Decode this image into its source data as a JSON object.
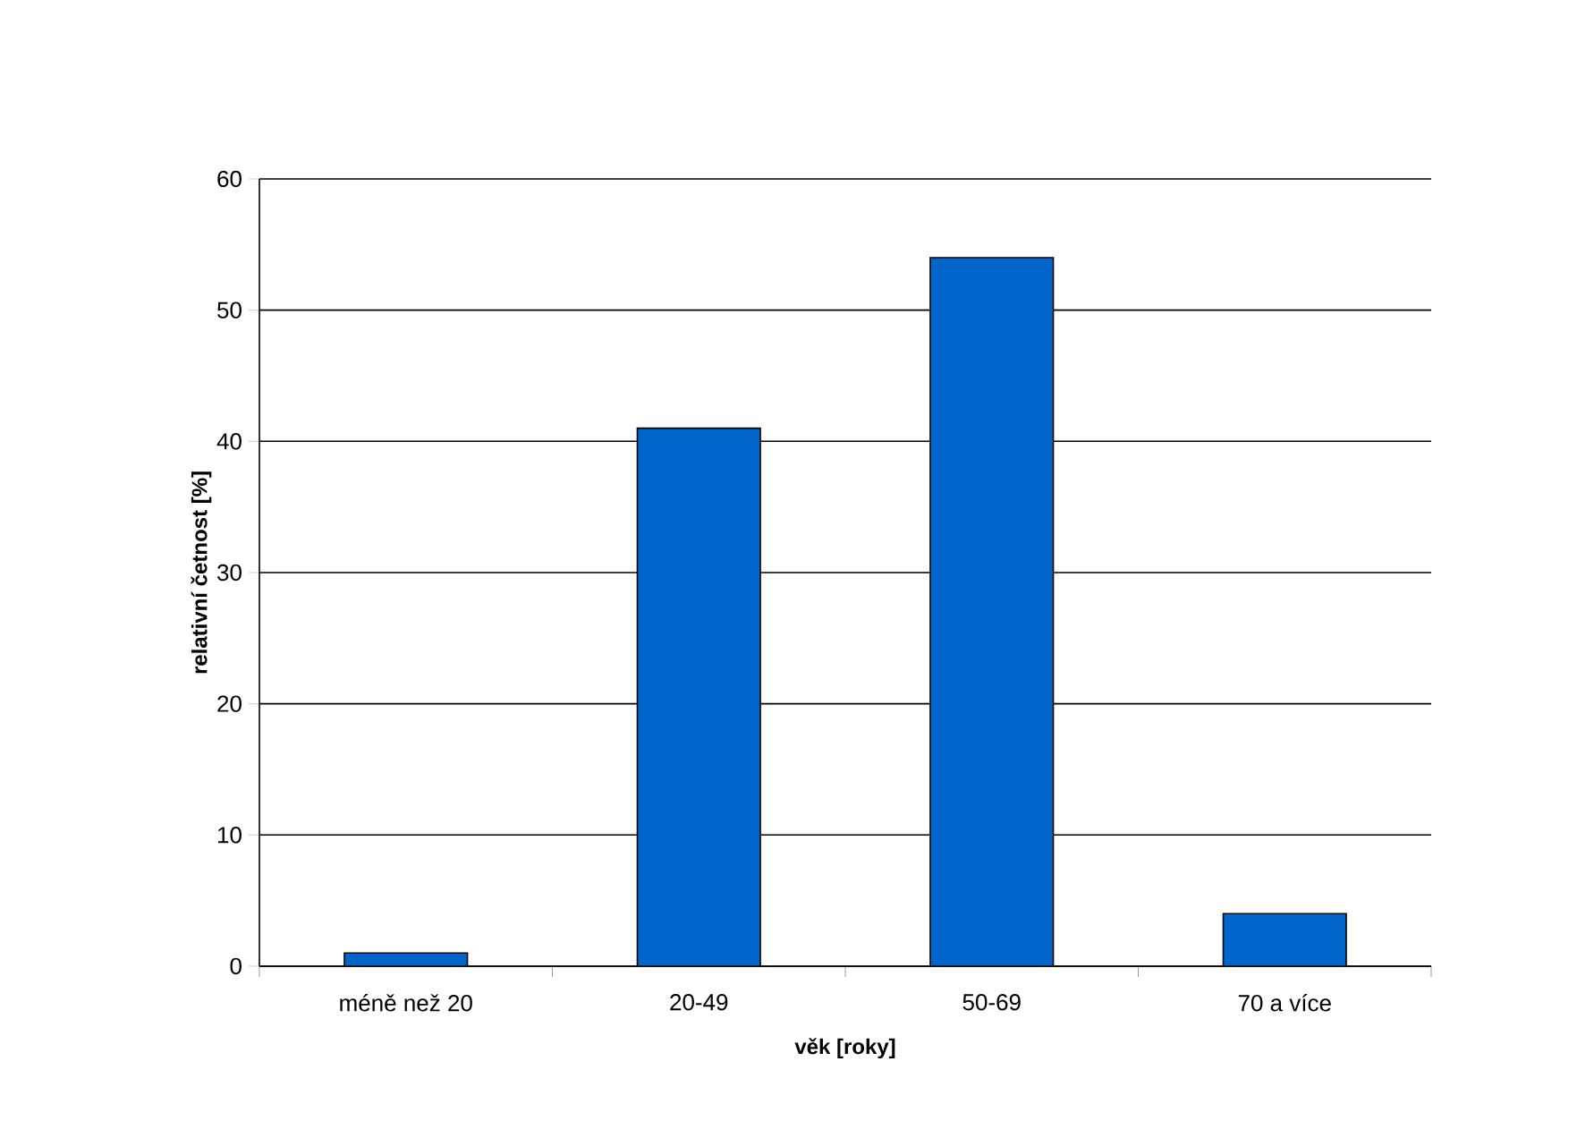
{
  "chart_data": {
    "type": "bar",
    "categories": [
      "méně než 20",
      "20-49",
      "50-69",
      "70 a více"
    ],
    "values": [
      1,
      41,
      54,
      4
    ],
    "color": "#0066cc",
    "xlabel": "věk [roky]",
    "ylabel": "relativní četnost [%]",
    "ylim": [
      0,
      60
    ],
    "yticks": [
      0,
      10,
      20,
      30,
      40,
      50,
      60
    ],
    "grid": "y"
  }
}
